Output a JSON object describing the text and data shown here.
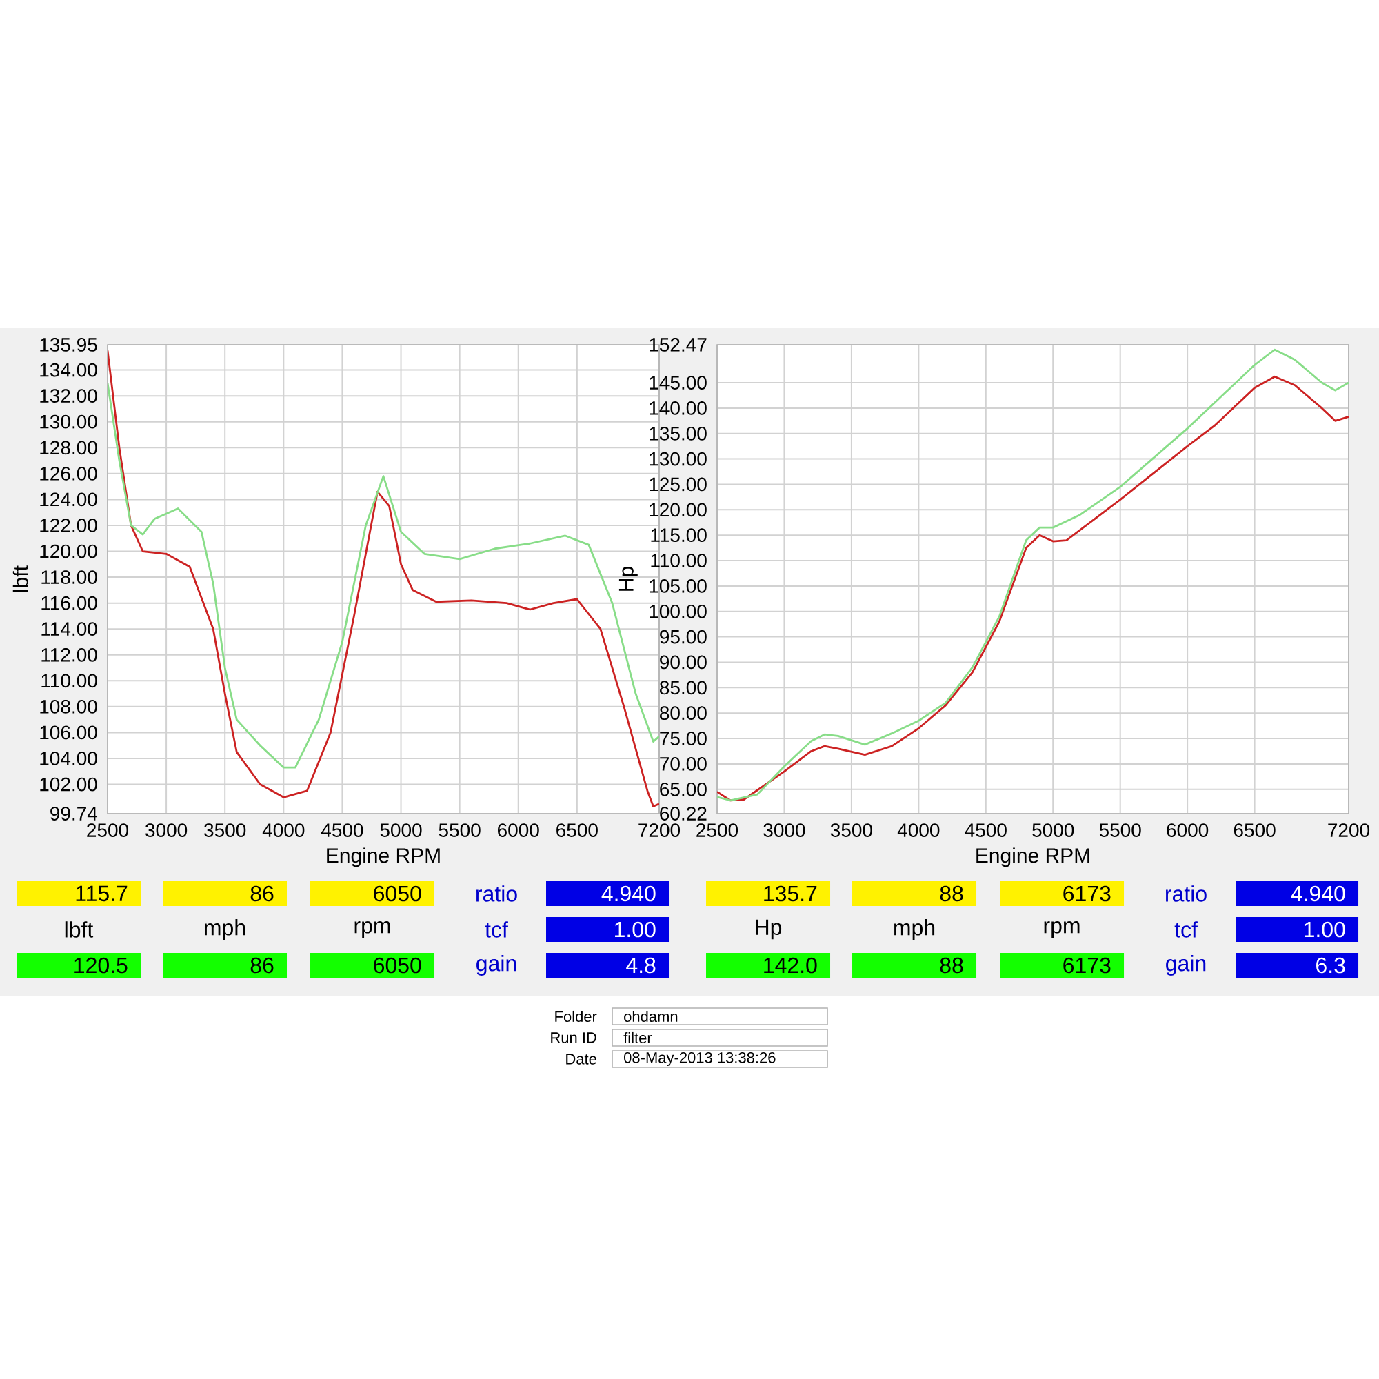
{
  "chart_data": [
    {
      "type": "line",
      "xlabel": "Engine RPM",
      "ylabel": "lbft",
      "xlim": [
        2500,
        7200
      ],
      "ylim": [
        99.74,
        135.95
      ],
      "xticks": [
        2500,
        3000,
        3500,
        4000,
        4500,
        5000,
        5500,
        6000,
        6500,
        7200
      ],
      "yticks": [
        {
          "value": 99.74,
          "label": "99.74"
        },
        {
          "value": 102,
          "label": "102.00"
        },
        {
          "value": 104,
          "label": "104.00"
        },
        {
          "value": 106,
          "label": "106.00"
        },
        {
          "value": 108,
          "label": "108.00"
        },
        {
          "value": 110,
          "label": "110.00"
        },
        {
          "value": 112,
          "label": "112.00"
        },
        {
          "value": 114,
          "label": "114.00"
        },
        {
          "value": 116,
          "label": "116.00"
        },
        {
          "value": 118,
          "label": "118.00"
        },
        {
          "value": 120,
          "label": "120.00"
        },
        {
          "value": 122,
          "label": "122.00"
        },
        {
          "value": 124,
          "label": "124.00"
        },
        {
          "value": 126,
          "label": "126.00"
        },
        {
          "value": 128,
          "label": "128.00"
        },
        {
          "value": 130,
          "label": "130.00"
        },
        {
          "value": 132,
          "label": "132.00"
        },
        {
          "value": 134,
          "label": "134.00"
        },
        {
          "value": 135.95,
          "label": "135.95"
        }
      ],
      "grid": true,
      "series": [
        {
          "color": "#cc2222",
          "x": [
            2500,
            2600,
            2700,
            2800,
            3000,
            3200,
            3400,
            3500,
            3600,
            3800,
            4000,
            4200,
            4400,
            4600,
            4800,
            4900,
            5000,
            5100,
            5300,
            5600,
            5900,
            6100,
            6300,
            6500,
            6700,
            6900,
            7100,
            7150,
            7200
          ],
          "values": [
            135.5,
            128,
            122,
            120,
            119.8,
            118.8,
            114,
            109,
            104.5,
            102,
            101,
            101.5,
            106,
            115,
            124.6,
            123.5,
            119,
            117,
            116.1,
            116.2,
            116,
            115.5,
            116,
            116.3,
            114,
            108,
            101.5,
            100.3,
            100.5
          ]
        },
        {
          "color": "#88dd88",
          "x": [
            2500,
            2600,
            2700,
            2800,
            2900,
            3100,
            3300,
            3400,
            3500,
            3600,
            3800,
            4000,
            4100,
            4300,
            4500,
            4700,
            4850,
            5000,
            5200,
            5500,
            5800,
            6100,
            6400,
            6600,
            6800,
            7000,
            7150,
            7200
          ],
          "values": [
            133,
            127,
            122,
            121.3,
            122.5,
            123.3,
            121.5,
            117.5,
            111,
            107,
            105,
            103.3,
            103.3,
            107,
            113,
            122,
            125.8,
            121.5,
            119.8,
            119.4,
            120.2,
            120.6,
            121.2,
            120.5,
            116,
            109,
            105.3,
            105.7
          ]
        }
      ],
      "annotations": [
        "115.7",
        "86",
        "6050",
        "ratio",
        "4.940",
        "lbft",
        "mph",
        "rpm",
        "tcf",
        "1.00",
        "120.5",
        "86",
        "6050",
        "gain",
        "4.8",
        "Folder",
        "ohdamn",
        "Run ID",
        "filter",
        "Date",
        "08-May-2013  13:38:26"
      ]
    },
    {
      "type": "line",
      "xlabel": "Engine RPM",
      "ylabel": "Hp",
      "xlim": [
        2500,
        7200
      ],
      "ylim": [
        60.22,
        152.47
      ],
      "xticks": [
        2500,
        3000,
        3500,
        4000,
        4500,
        5000,
        5500,
        6000,
        6500,
        7200
      ],
      "yticks": [
        {
          "value": 60.22,
          "label": "60.22"
        },
        {
          "value": 65,
          "label": "65.00"
        },
        {
          "value": 70,
          "label": "70.00"
        },
        {
          "value": 75,
          "label": "75.00"
        },
        {
          "value": 80,
          "label": "80.00"
        },
        {
          "value": 85,
          "label": "85.00"
        },
        {
          "value": 90,
          "label": "90.00"
        },
        {
          "value": 95,
          "label": "95.00"
        },
        {
          "value": 100,
          "label": "100.00"
        },
        {
          "value": 105,
          "label": "105.00"
        },
        {
          "value": 110,
          "label": "110.00"
        },
        {
          "value": 115,
          "label": "115.00"
        },
        {
          "value": 120,
          "label": "120.00"
        },
        {
          "value": 125,
          "label": "125.00"
        },
        {
          "value": 130,
          "label": "130.00"
        },
        {
          "value": 135,
          "label": "135.00"
        },
        {
          "value": 140,
          "label": "140.00"
        },
        {
          "value": 145,
          "label": "145.00"
        },
        {
          "value": 152.47,
          "label": "152.47"
        }
      ],
      "grid": true,
      "series": [
        {
          "color": "#cc2222",
          "x": [
            2500,
            2600,
            2700,
            3000,
            3200,
            3300,
            3400,
            3600,
            3800,
            4000,
            4200,
            4400,
            4600,
            4800,
            4900,
            5000,
            5100,
            5300,
            5500,
            6000,
            6200,
            6500,
            6650,
            6800,
            7000,
            7100,
            7200
          ],
          "values": [
            64.5,
            62.8,
            63,
            68.5,
            72.5,
            73.5,
            73,
            71.8,
            73.5,
            77,
            81.5,
            88,
            98,
            112.5,
            115,
            113.8,
            114,
            118,
            122,
            132.5,
            136.5,
            144,
            146.2,
            144.5,
            140,
            137.5,
            138.3
          ]
        },
        {
          "color": "#88dd88",
          "x": [
            2500,
            2600,
            2800,
            3000,
            3200,
            3300,
            3400,
            3600,
            3800,
            4000,
            4200,
            4400,
            4600,
            4800,
            4900,
            5000,
            5200,
            5500,
            6000,
            6200,
            6500,
            6650,
            6800,
            7000,
            7100,
            7200
          ],
          "values": [
            63.5,
            62.8,
            64,
            69.5,
            74.5,
            75.8,
            75.5,
            73.8,
            76,
            78.5,
            82,
            89,
            99,
            114,
            116.5,
            116.5,
            119,
            124.5,
            136,
            141,
            148.5,
            151.5,
            149.5,
            145,
            143.5,
            145
          ]
        }
      ],
      "annotations": [
        "135.7",
        "88",
        "6173",
        "ratio",
        "4.940",
        "Hp",
        "mph",
        "rpm",
        "tcf",
        "1.00",
        "142.0",
        "88",
        "6173",
        "gain",
        "6.3"
      ]
    }
  ]
}
